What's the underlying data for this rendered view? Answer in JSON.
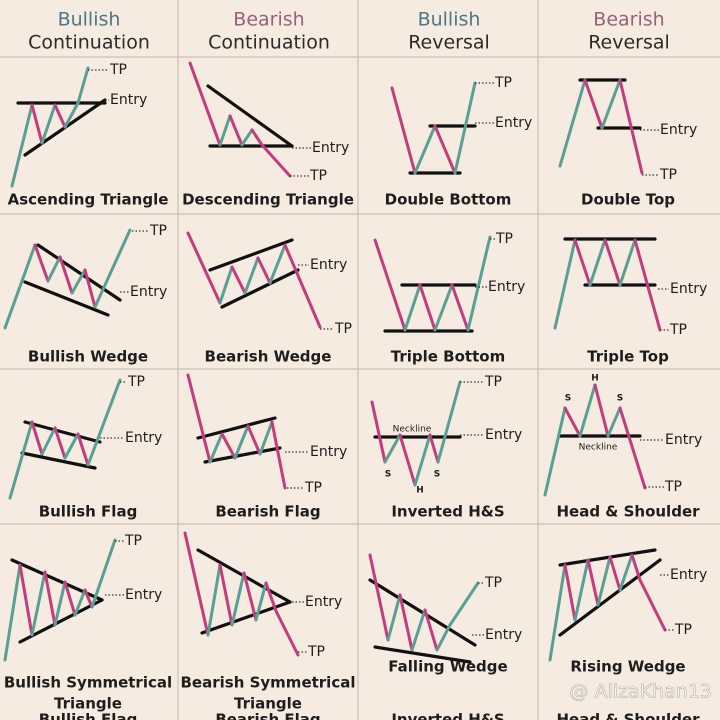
{
  "headers": [
    {
      "line1": "Bullish",
      "line2": "Continuation"
    },
    {
      "line1": "Bearish",
      "line2": "Continuation"
    },
    {
      "line1": "Bullish",
      "line2": "Reversal"
    },
    {
      "line1": "Bearish",
      "line2": "Reversal"
    }
  ],
  "patterns": [
    {
      "name": "Ascending Triangle",
      "tp": "TP",
      "entry": "Entry"
    },
    {
      "name": "Descending Triangle",
      "tp": "TP",
      "entry": "Entry"
    },
    {
      "name": "Double Bottom",
      "tp": "TP",
      "entry": "Entry"
    },
    {
      "name": "Double Top",
      "tp": "TP",
      "entry": "Entry"
    },
    {
      "name": "Bullish Wedge",
      "tp": "TP",
      "entry": "Entry"
    },
    {
      "name": "Bearish Wedge",
      "tp": "TP",
      "entry": "Entry"
    },
    {
      "name": "Triple Bottom",
      "tp": "TP",
      "entry": "Entry"
    },
    {
      "name": "Triple Top",
      "tp": "TP",
      "entry": "Entry"
    },
    {
      "name": "Bullish Flag",
      "tp": "TP",
      "entry": "Entry"
    },
    {
      "name": "Bearish Flag",
      "tp": "TP",
      "entry": "Entry"
    },
    {
      "name": "Inverted H&S",
      "tp": "TP",
      "entry": "Entry",
      "neckline": "Neckline",
      "left": "S",
      "head": "H",
      "right": "S"
    },
    {
      "name": "Head & Shoulder",
      "tp": "TP",
      "entry": "Entry",
      "neckline": "Neckline",
      "left": "S",
      "head": "H",
      "right": "S"
    },
    {
      "name": [
        "Bullish Symmetrical",
        "Triangle"
      ],
      "tp": "TP",
      "entry": "Entry"
    },
    {
      "name": [
        "Bearish Symmetrical",
        "Triangle"
      ],
      "tp": "TP",
      "entry": "Entry"
    },
    {
      "name": "Falling Wedge",
      "tp": "TP",
      "entry": "Entry"
    },
    {
      "name": "Rising Wedge",
      "tp": "TP",
      "entry": "Entry"
    }
  ],
  "cutoff_labels": [
    "Bullish Flag",
    "Bearish Flag",
    "Inverted H&S",
    "Head & Shoulder"
  ],
  "watermark": "@ AlizaKhan13"
}
